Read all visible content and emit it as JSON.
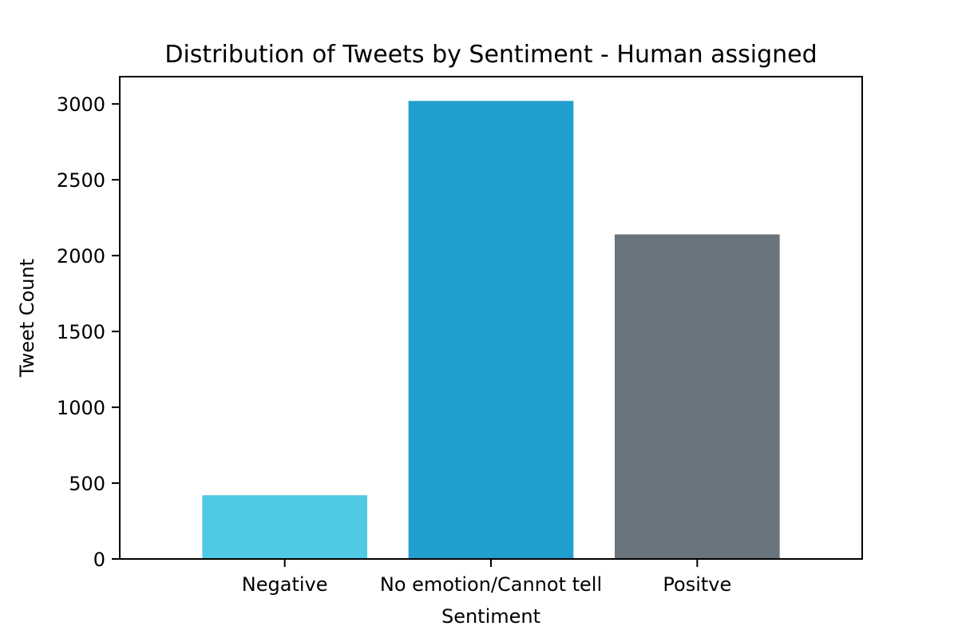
{
  "chart_data": {
    "type": "bar",
    "title": "Distribution of Tweets by Sentiment - Human assigned",
    "xlabel": "Sentiment",
    "ylabel": "Tweet Count",
    "categories": [
      "Negative",
      "No emotion/Cannot tell",
      "Positve"
    ],
    "values": [
      420,
      3020,
      2140
    ],
    "colors": [
      "#4fc9e4",
      "#219fcf",
      "#6a747c"
    ],
    "ylim": [
      0,
      3180
    ],
    "yticks": [
      0,
      500,
      1000,
      1500,
      2000,
      2500,
      3000
    ],
    "grid": false,
    "legend": "none"
  }
}
